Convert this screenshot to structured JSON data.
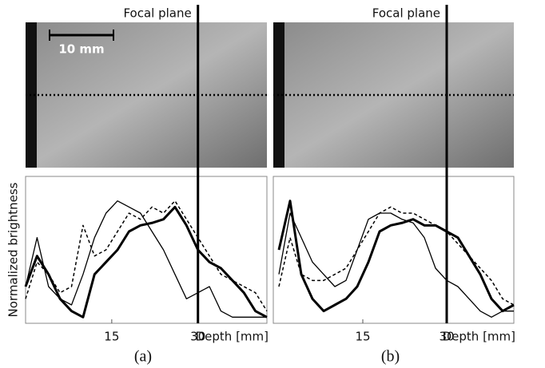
{
  "chart_data": [
    {
      "type": "line",
      "panel_label": "(a)",
      "annotation": "Focal plane",
      "scale_bar_label": "10 mm",
      "focal_plane_x": 30,
      "x_label": "Depth [mm]",
      "y_label": "Normalized brightness",
      "xlim": [
        0,
        42
      ],
      "ylim": [
        0,
        1.2
      ],
      "xticks": [
        15,
        30
      ],
      "x": [
        0,
        2,
        4,
        6,
        8,
        10,
        12,
        14,
        16,
        18,
        20,
        22,
        24,
        26,
        28,
        30,
        32,
        34,
        36,
        38,
        40,
        42
      ],
      "series": [
        {
          "color": "#000000",
          "line_width": 3,
          "dashed": false,
          "values": [
            0.3,
            0.55,
            0.4,
            0.2,
            0.1,
            0.05,
            0.4,
            0.5,
            0.6,
            0.75,
            0.8,
            0.82,
            0.85,
            0.95,
            0.8,
            0.6,
            0.5,
            0.45,
            0.35,
            0.25,
            0.1,
            0.05
          ]
        },
        {
          "color": "#000000",
          "line_width": 1.3,
          "dashed": false,
          "values": [
            0.3,
            0.7,
            0.3,
            0.2,
            0.15,
            0.4,
            0.7,
            0.9,
            1.0,
            0.95,
            0.9,
            0.75,
            0.6,
            0.4,
            0.2,
            0.25,
            0.3,
            0.1,
            0.05,
            0.05,
            0.05,
            0.05
          ]
        },
        {
          "color": "#000000",
          "line_width": 1.5,
          "dashed": true,
          "values": [
            0.2,
            0.5,
            0.4,
            0.25,
            0.3,
            0.8,
            0.55,
            0.6,
            0.75,
            0.9,
            0.85,
            0.95,
            0.9,
            1.0,
            0.85,
            0.7,
            0.55,
            0.4,
            0.35,
            0.3,
            0.25,
            0.1
          ]
        }
      ]
    },
    {
      "type": "line",
      "panel_label": "(b)",
      "annotation": "Focal plane",
      "focal_plane_x": 30,
      "x_label": "Depth [mm]",
      "xlim": [
        -1,
        42
      ],
      "ylim": [
        0,
        1.2
      ],
      "xticks": [
        15,
        30
      ],
      "x": [
        0,
        2,
        4,
        6,
        8,
        10,
        12,
        14,
        16,
        18,
        20,
        22,
        24,
        26,
        28,
        30,
        32,
        34,
        36,
        38,
        40,
        42
      ],
      "series": [
        {
          "color": "#000000",
          "line_width": 3,
          "dashed": false,
          "values": [
            0.6,
            1.0,
            0.4,
            0.2,
            0.1,
            0.15,
            0.2,
            0.3,
            0.5,
            0.75,
            0.8,
            0.82,
            0.85,
            0.8,
            0.8,
            0.75,
            0.7,
            0.55,
            0.4,
            0.2,
            0.1,
            0.15
          ]
        },
        {
          "color": "#000000",
          "line_width": 1.3,
          "dashed": false,
          "values": [
            0.4,
            0.9,
            0.7,
            0.5,
            0.4,
            0.3,
            0.35,
            0.6,
            0.85,
            0.9,
            0.9,
            0.85,
            0.82,
            0.7,
            0.45,
            0.35,
            0.3,
            0.2,
            0.1,
            0.05,
            0.1,
            0.1
          ]
        },
        {
          "color": "#000000",
          "line_width": 1.5,
          "dashed": true,
          "values": [
            0.3,
            0.7,
            0.4,
            0.35,
            0.35,
            0.4,
            0.45,
            0.6,
            0.75,
            0.9,
            0.95,
            0.9,
            0.9,
            0.85,
            0.8,
            0.75,
            0.65,
            0.55,
            0.45,
            0.35,
            0.2,
            0.15
          ]
        }
      ]
    }
  ]
}
